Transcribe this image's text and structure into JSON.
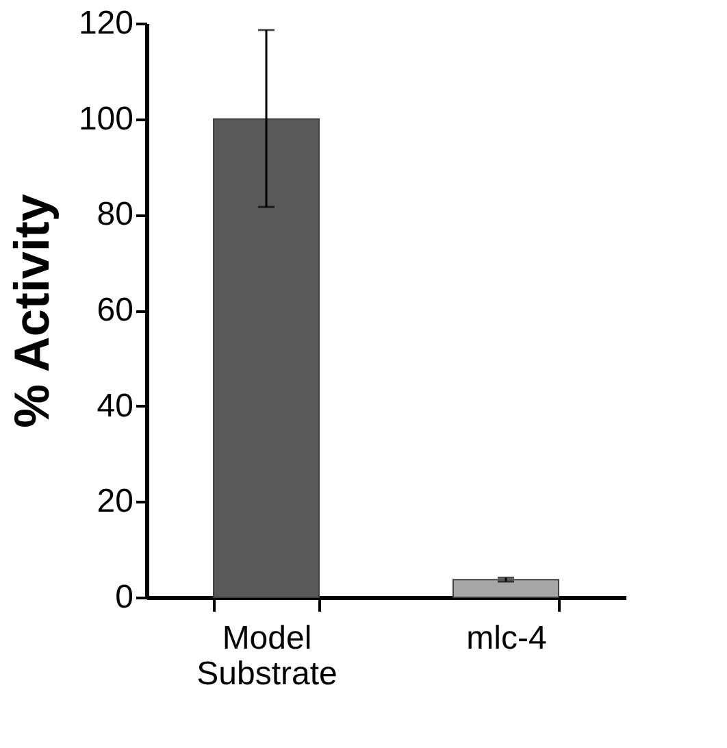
{
  "chart_data": {
    "type": "bar",
    "ylabel": "% Activity",
    "categories": [
      "Model Substrate",
      "mlc-4"
    ],
    "values": [
      100,
      3.7
    ],
    "colors": [
      "#595959",
      "#a6a6a6"
    ],
    "errors": [
      [
        81.6,
        118.6
      ],
      [
        3.3,
        4.1
      ]
    ],
    "ylim": [
      0,
      120
    ],
    "yticks": [
      0,
      20,
      40,
      60,
      80,
      100,
      120
    ],
    "grid": false
  }
}
